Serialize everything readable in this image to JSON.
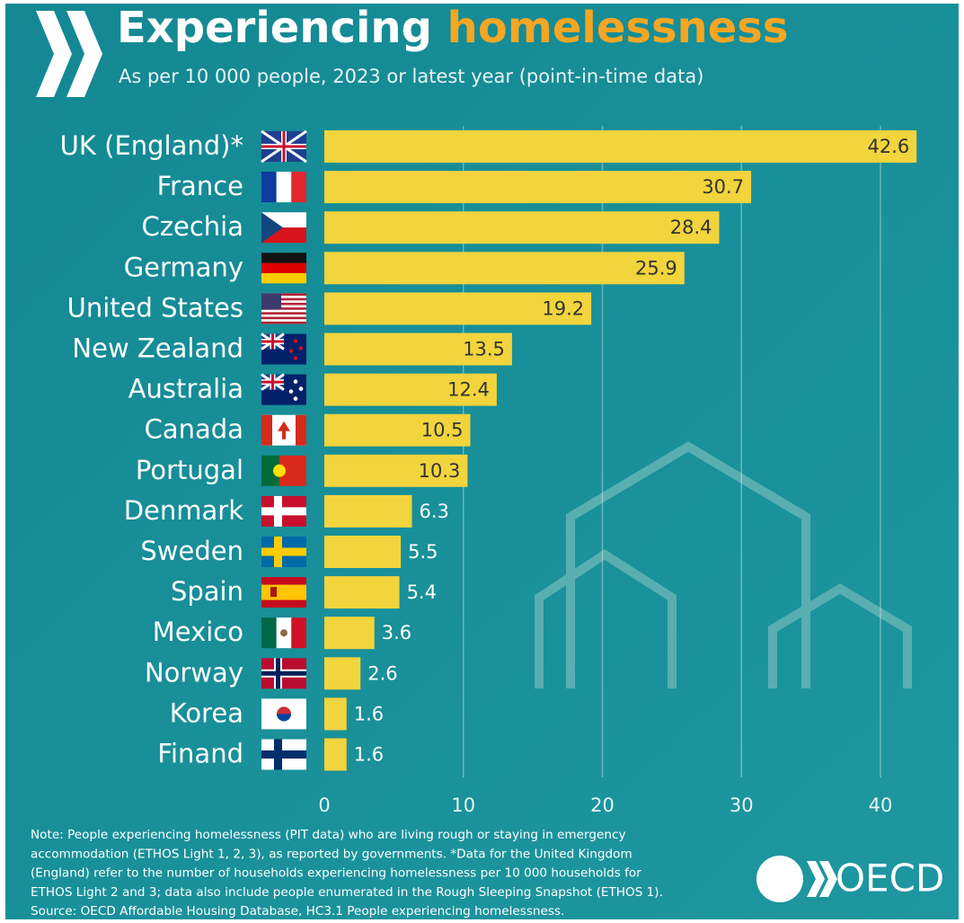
{
  "chart_data": {
    "type": "hbar",
    "title_parts": [
      "Experiencing",
      "homelessness"
    ],
    "subtitle": "As per 10 000 people, 2023 or latest year (point-in-time data)",
    "categories": [
      "UK (England)*",
      "France",
      "Czechia",
      "Germany",
      "United States",
      "New Zealand",
      "Australia",
      "Canada",
      "Portugal",
      "Denmark",
      "Sweden",
      "Spain",
      "Mexico",
      "Norway",
      "Korea",
      "Finand"
    ],
    "values": [
      42.6,
      30.7,
      28.4,
      25.9,
      19.2,
      13.5,
      12.4,
      10.5,
      10.3,
      6.3,
      5.5,
      5.4,
      3.6,
      2.6,
      1.6,
      1.6
    ],
    "color": "#f2d43d",
    "xlim": [
      0,
      43
    ],
    "xticks": [
      0,
      10,
      20,
      30,
      40
    ],
    "grid": true,
    "note_lines": [
      "Note: People experiencing homelessness (PIT data) who are living rough or staying in emergency",
      "accommodation (ETHOS Light 1, 2, 3), as reported by governments. *Data for the United Kingdom",
      "(England) refer to the number of households experiencing homelessness per 10 000 households for",
      "ETHOS Light 2 and 3; data also include people enumerated in the Rough Sleeping Snapshot (ETHOS 1).",
      "Source: OECD Affordable Housing Database, HC3.1 People experiencing homelessness."
    ],
    "logo": "OECD"
  }
}
